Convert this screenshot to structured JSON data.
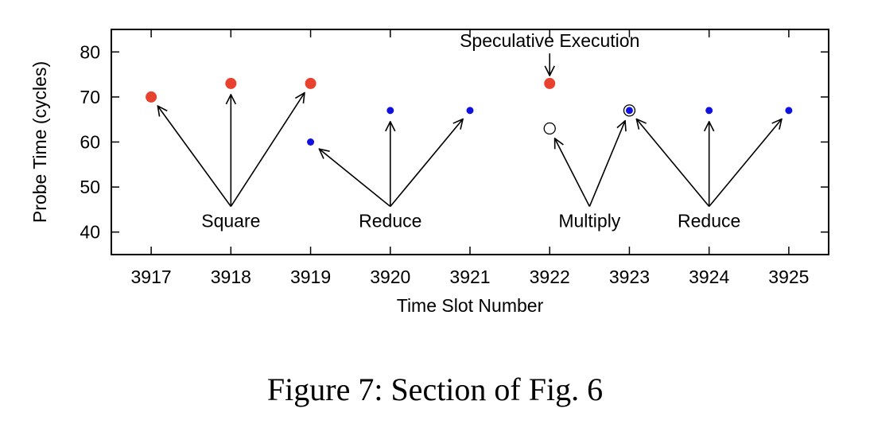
{
  "caption": "Figure 7: Section of Fig. 6",
  "chart_data": {
    "type": "scatter",
    "xlabel": "Time Slot Number",
    "ylabel": "Probe Time (cycles)",
    "xlim": [
      3916.5,
      3925.5
    ],
    "ylim": [
      35,
      85
    ],
    "xticks": [
      3917,
      3918,
      3919,
      3920,
      3921,
      3922,
      3923,
      3924,
      3925
    ],
    "yticks": [
      40,
      50,
      60,
      70,
      80
    ],
    "grid": false,
    "colors": {
      "red": "#e8412e",
      "blue": "#1010e0",
      "open": "#000000"
    },
    "points": [
      {
        "x": 3917,
        "y": 70,
        "style": "red"
      },
      {
        "x": 3918,
        "y": 73,
        "style": "red"
      },
      {
        "x": 3919,
        "y": 73,
        "style": "red"
      },
      {
        "x": 3919,
        "y": 60,
        "style": "blue"
      },
      {
        "x": 3920,
        "y": 67,
        "style": "blue"
      },
      {
        "x": 3921,
        "y": 67,
        "style": "blue"
      },
      {
        "x": 3922,
        "y": 73,
        "style": "red"
      },
      {
        "x": 3922,
        "y": 63,
        "style": "open"
      },
      {
        "x": 3923,
        "y": 67,
        "style": "open"
      },
      {
        "x": 3923,
        "y": 67,
        "style": "blue"
      },
      {
        "x": 3924,
        "y": 67,
        "style": "blue"
      },
      {
        "x": 3925,
        "y": 67,
        "style": "blue"
      }
    ],
    "annotations": [
      {
        "text": "Square",
        "x": 3918.0,
        "y": 42.5,
        "arrows_to": [
          [
            3917,
            70
          ],
          [
            3918,
            73
          ],
          [
            3919,
            73
          ]
        ]
      },
      {
        "text": "Reduce",
        "x": 3920.0,
        "y": 42.5,
        "arrows_to": [
          [
            3919,
            60
          ],
          [
            3920,
            67
          ],
          [
            3921,
            67
          ]
        ]
      },
      {
        "text": "Multiply",
        "x": 3922.5,
        "y": 42.5,
        "arrows_to": [
          [
            3922,
            63
          ],
          [
            3923,
            67
          ]
        ]
      },
      {
        "text": "Reduce",
        "x": 3924.0,
        "y": 42.5,
        "arrows_to": [
          [
            3923,
            67
          ],
          [
            3924,
            67
          ],
          [
            3925,
            67
          ]
        ]
      },
      {
        "text": "Speculative Execution",
        "x": 3922.0,
        "y": 82.5,
        "arrows_to": [
          [
            3922,
            73
          ]
        ]
      }
    ]
  }
}
